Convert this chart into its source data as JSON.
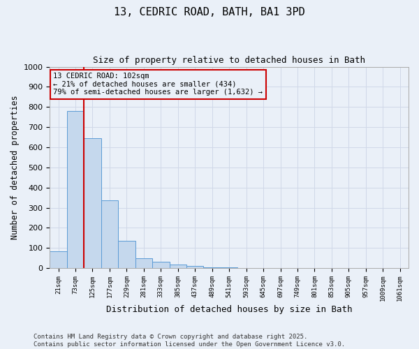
{
  "title_line1": "13, CEDRIC ROAD, BATH, BA1 3PD",
  "title_line2": "Size of property relative to detached houses in Bath",
  "xlabel": "Distribution of detached houses by size in Bath",
  "ylabel": "Number of detached properties",
  "bar_values": [
    82,
    780,
    645,
    335,
    135,
    50,
    30,
    18,
    10,
    5,
    3,
    2,
    0,
    0,
    0,
    0,
    0,
    0,
    0,
    0,
    0
  ],
  "bar_labels": [
    "21sqm",
    "73sqm",
    "125sqm",
    "177sqm",
    "229sqm",
    "281sqm",
    "333sqm",
    "385sqm",
    "437sqm",
    "489sqm",
    "541sqm",
    "593sqm",
    "645sqm",
    "697sqm",
    "749sqm",
    "801sqm",
    "853sqm",
    "905sqm",
    "957sqm",
    "1009sqm",
    "1061sqm"
  ],
  "bar_color": "#c5d8ed",
  "bar_edge_color": "#5b9bd5",
  "ylim": [
    0,
    1000
  ],
  "yticks": [
    0,
    100,
    200,
    300,
    400,
    500,
    600,
    700,
    800,
    900,
    1000
  ],
  "property_line_color": "#cc0000",
  "annotation_text": "13 CEDRIC ROAD: 102sqm\n← 21% of detached houses are smaller (434)\n79% of semi-detached houses are larger (1,632) →",
  "annotation_box_color": "#cc0000",
  "annotation_text_color": "#000000",
  "grid_color": "#d0d8e8",
  "background_color": "#eaf0f8",
  "footer_text": "Contains HM Land Registry data © Crown copyright and database right 2025.\nContains public sector information licensed under the Open Government Licence v3.0."
}
